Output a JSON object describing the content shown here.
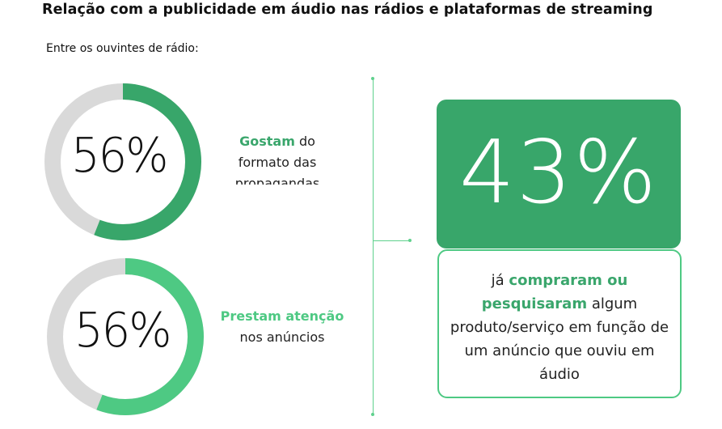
{
  "title": "Relação com a publicidade em áudio nas rádios e plataformas de streaming",
  "subtitle": "Entre os ouvintes de rádio:",
  "colors": {
    "dark_green": "#38a66a",
    "light_green": "#4ec983",
    "track_grey": "#d9d9d9"
  },
  "chart_data": [
    {
      "type": "pie",
      "values": [
        56,
        44
      ],
      "value_label": "56%",
      "label_highlight": "Gostam",
      "label_rest": [
        " do",
        "formato das",
        "propagandas"
      ]
    },
    {
      "type": "pie",
      "values": [
        56,
        44
      ],
      "value_label": "56%",
      "label_highlight": "Prestam atenção",
      "label_rest": [
        "nos anúncios"
      ]
    }
  ],
  "callout": {
    "value": 43,
    "value_label": "43%",
    "text_start": "já ",
    "highlight": "compraram ou pesquisaram",
    "text_end": " algum produto/serviço em função de um anúncio que ouviu em áudio"
  }
}
